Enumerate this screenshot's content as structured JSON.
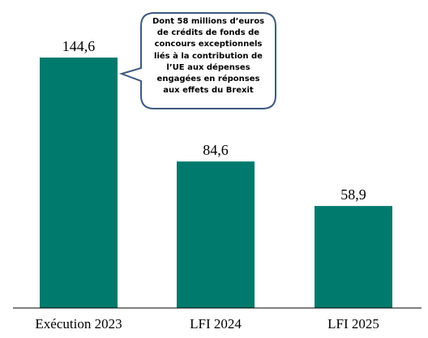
{
  "colors": {
    "bar": "#007a6c",
    "axis": "#000000",
    "callout_border": "#3d5a80"
  },
  "chart_data": {
    "type": "bar",
    "categories": [
      "Exécution 2023",
      "LFI 2024",
      "LFI 2025"
    ],
    "values": [
      144.6,
      84.6,
      58.9
    ],
    "value_labels": [
      "144,6",
      "84,6",
      "58,9"
    ],
    "ylim": [
      0,
      160
    ],
    "grid": false,
    "legend": "none",
    "annotations": [
      {
        "text": "Dont 58 millions d’euros\nde crédits de fonds de\nconcours exceptionnels\nliés à la contribution de\nl’UE aux dépenses\nengagées en réponses\naux effets du Brexit",
        "target_category": "Exécution 2023"
      }
    ]
  }
}
